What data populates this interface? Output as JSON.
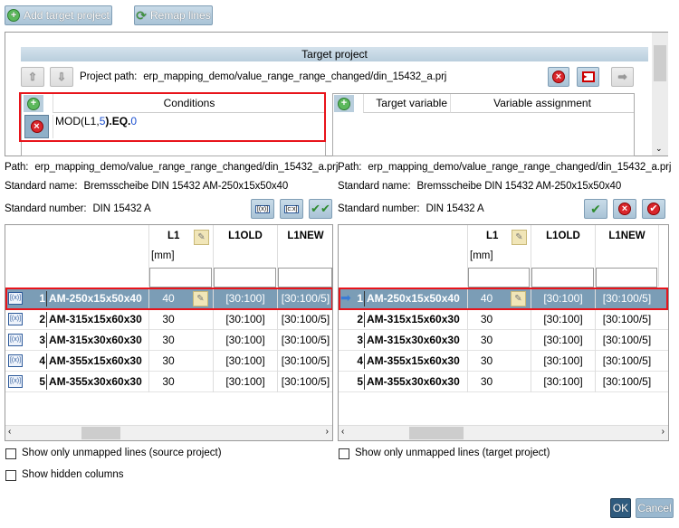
{
  "toolbar": {
    "add_target_project": "Add target project",
    "remap_lines": "Remap lines"
  },
  "target": {
    "title": "Target project",
    "project_path_label": "Project path:",
    "project_path": "erp_mapping_demo/value_range_range_changed/din_15432_a.prj",
    "conditions": {
      "header": "Conditions",
      "rows": [
        {
          "expr_prefix": "MOD(L1,",
          "arg": "5",
          "mid": ").EQ.",
          "val": "0"
        }
      ]
    },
    "assignments": {
      "headers": [
        "Target variable",
        "Variable assignment"
      ]
    }
  },
  "source_info": {
    "path_label": "Path:",
    "path": "erp_mapping_demo/value_range_range_changed/din_15432_a.prj",
    "std_name_label": "Standard name:",
    "std_name": "Bremsscheibe DIN 15432 AM-250x15x50x40",
    "std_num_label": "Standard number:",
    "std_num": "DIN 15432 A"
  },
  "target_info": {
    "path_label": "Path:",
    "path": "erp_mapping_demo/value_range_range_changed/din_15432_a.prj",
    "std_name_label": "Standard name:",
    "std_name": "Bremsscheibe DIN 15432 AM-250x15x50x40",
    "std_num_label": "Standard number:",
    "std_num": "DIN 15432 A"
  },
  "columns": {
    "l1": "L1",
    "l1_unit": "[mm]",
    "l1old": "L1OLD",
    "l1new": "L1NEW"
  },
  "rows": [
    {
      "n": "1",
      "name": "AM-250x15x50x40",
      "l1": "40",
      "l1old": "[30:100]",
      "l1new": "[30:100/5]"
    },
    {
      "n": "2",
      "name": "AM-315x15x60x30",
      "l1": "30",
      "l1old": "[30:100]",
      "l1new": "[30:100/5]"
    },
    {
      "n": "3",
      "name": "AM-315x30x60x30",
      "l1": "30",
      "l1old": "[30:100]",
      "l1new": "[30:100/5]"
    },
    {
      "n": "4",
      "name": "AM-355x15x60x30",
      "l1": "30",
      "l1old": "[30:100]",
      "l1new": "[30:100/5]"
    },
    {
      "n": "5",
      "name": "AM-355x30x60x30",
      "l1": "30",
      "l1old": "[30:100]",
      "l1new": "[30:100/5]"
    }
  ],
  "options": {
    "unmapped_source": "Show only unmapped lines (source project)",
    "unmapped_target": "Show only unmapped lines (target project)",
    "hidden_columns": "Show hidden columns"
  },
  "footer": {
    "ok": "OK",
    "cancel": "Cancel"
  },
  "colors": {
    "selected_row": "#7b9db6",
    "highlight": "#e8141b"
  }
}
